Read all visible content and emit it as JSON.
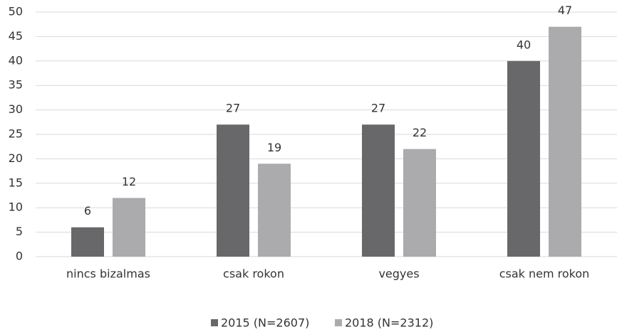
{
  "chart_data": {
    "type": "bar",
    "categories": [
      "nincs bizalmas",
      "csak rokon",
      "vegyes",
      "csak nem rokon"
    ],
    "series": [
      {
        "name": "2015 (N=2607)",
        "color": "#68686b",
        "values": [
          6,
          27,
          27,
          40
        ]
      },
      {
        "name": "2018 (N=2312)",
        "color": "#ababad",
        "values": [
          12,
          19,
          22,
          47
        ]
      }
    ],
    "ylim": [
      0,
      50
    ],
    "yticks": [
      0,
      5,
      10,
      15,
      20,
      25,
      30,
      35,
      40,
      45,
      50
    ],
    "grid": true,
    "legend": "bottom"
  }
}
